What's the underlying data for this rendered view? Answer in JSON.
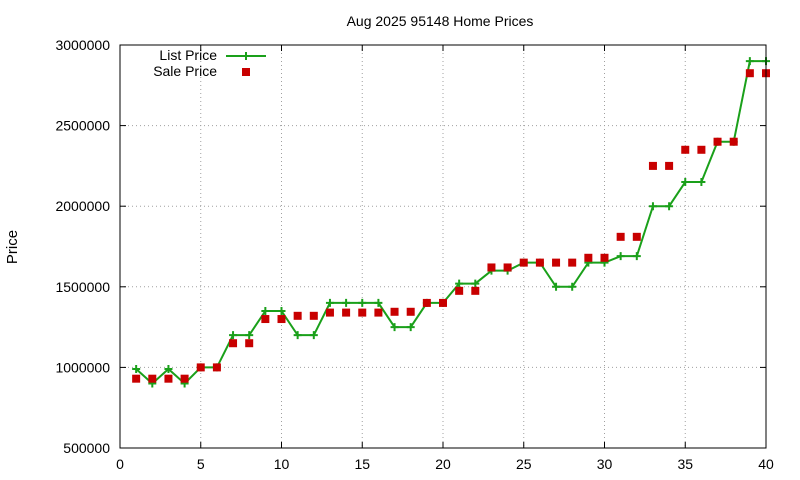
{
  "chart_data": {
    "type": "line",
    "title": "Aug 2025 95148 Home Prices",
    "xlabel": "",
    "ylabel": "Price",
    "xlim": [
      0,
      40
    ],
    "ylim": [
      500000,
      3000000
    ],
    "x_ticks": [
      "0",
      "5",
      "10",
      "15",
      "20",
      "25",
      "30",
      "35",
      "40"
    ],
    "y_ticks": [
      "500000",
      "1000000",
      "1500000",
      "2000000",
      "2500000",
      "3000000"
    ],
    "grid": true,
    "legend_position": "top-left",
    "colors": {
      "list": "#1aa01a",
      "sale": "#c80000"
    },
    "series": [
      {
        "name": "List Price",
        "style": "line-plus",
        "x": [
          1,
          2,
          3,
          4,
          5,
          6,
          7,
          8,
          9,
          10,
          11,
          12,
          13,
          14,
          15,
          16,
          17,
          18,
          19,
          20,
          21,
          22,
          23,
          24,
          25,
          26,
          27,
          28,
          29,
          30,
          31,
          32,
          33,
          34,
          35,
          36,
          37,
          38,
          39,
          40
        ],
        "values": [
          990000,
          900000,
          990000,
          900000,
          1000000,
          1000000,
          1200000,
          1200000,
          1350000,
          1350000,
          1200000,
          1200000,
          1400000,
          1400000,
          1400000,
          1400000,
          1250000,
          1250000,
          1400000,
          1400000,
          1520000,
          1520000,
          1600000,
          1600000,
          1650000,
          1650000,
          1500000,
          1500000,
          1650000,
          1650000,
          1690000,
          1690000,
          2000000,
          2000000,
          2150000,
          2150000,
          2400000,
          2400000,
          2900000,
          2900000
        ]
      },
      {
        "name": "Sale Price",
        "style": "square-points",
        "x": [
          1,
          2,
          3,
          4,
          5,
          6,
          7,
          8,
          9,
          10,
          11,
          12,
          13,
          14,
          15,
          16,
          17,
          18,
          19,
          20,
          21,
          22,
          23,
          24,
          25,
          26,
          27,
          28,
          29,
          30,
          31,
          32,
          33,
          34,
          35,
          36,
          37,
          38,
          39,
          40
        ],
        "values": [
          930000,
          930000,
          930000,
          930000,
          1000000,
          1000000,
          1150000,
          1150000,
          1300000,
          1300000,
          1320000,
          1320000,
          1340000,
          1340000,
          1340000,
          1340000,
          1345000,
          1345000,
          1400000,
          1400000,
          1475000,
          1475000,
          1620000,
          1620000,
          1650000,
          1650000,
          1650000,
          1650000,
          1680000,
          1680000,
          1810000,
          1810000,
          2250000,
          2250000,
          2350000,
          2350000,
          2400000,
          2400000,
          2825000,
          2825000
        ]
      }
    ]
  }
}
